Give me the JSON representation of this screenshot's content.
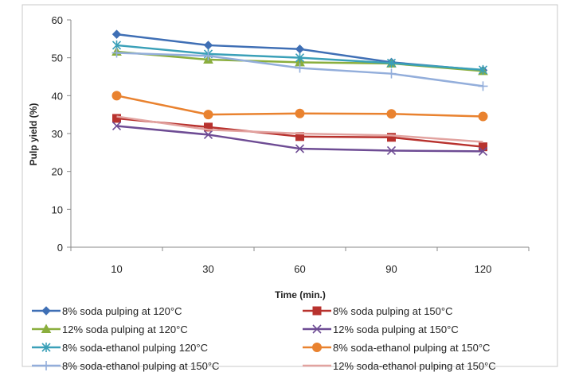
{
  "chart_data": {
    "type": "line",
    "xlabel": "Time (min.)",
    "ylabel": "Pulp yield (%)",
    "categories": [
      "10",
      "30",
      "60",
      "90",
      "120"
    ],
    "ylim": [
      0,
      60
    ],
    "yticks": [
      0,
      10,
      20,
      30,
      40,
      50,
      60
    ],
    "grid": false,
    "legend_position": "bottom",
    "series": [
      {
        "name": "8% soda pulping at 120°C",
        "values": [
          56.2,
          53.3,
          52.3,
          48.8,
          46.7
        ],
        "color": "#3F6FB5",
        "marker": "diamond"
      },
      {
        "name": "8% soda pulping at 150°C",
        "values": [
          34.0,
          31.7,
          29.2,
          29.0,
          26.5
        ],
        "color": "#B8322E",
        "marker": "square"
      },
      {
        "name": "12% soda pulping at 120°C",
        "values": [
          51.6,
          49.5,
          48.8,
          48.5,
          46.5
        ],
        "color": "#8AAE3D",
        "marker": "triangle"
      },
      {
        "name": "12% soda pulping at  150°C",
        "values": [
          32.0,
          29.7,
          26.0,
          25.5,
          25.3
        ],
        "color": "#6E4C94",
        "marker": "x"
      },
      {
        "name": "8% soda-ethanol pulping  120°C",
        "values": [
          53.3,
          51.0,
          50.0,
          48.6,
          46.8
        ],
        "color": "#3AA0B8",
        "marker": "star"
      },
      {
        "name": "8% soda-ethanol pulping at 150°C",
        "values": [
          40.0,
          35.0,
          35.3,
          35.2,
          34.5
        ],
        "color": "#E9822F",
        "marker": "circle"
      },
      {
        "name": "8% soda-ethanol pulping at 150°C",
        "values": [
          51.3,
          50.5,
          47.3,
          45.8,
          42.5
        ],
        "color": "#93AEDB",
        "marker": "plus"
      },
      {
        "name": "12% soda-ethanol pulping at 150°C",
        "values": [
          34.5,
          31.0,
          30.0,
          29.5,
          27.8
        ],
        "color": "#E2A3A0",
        "marker": "none"
      }
    ]
  }
}
